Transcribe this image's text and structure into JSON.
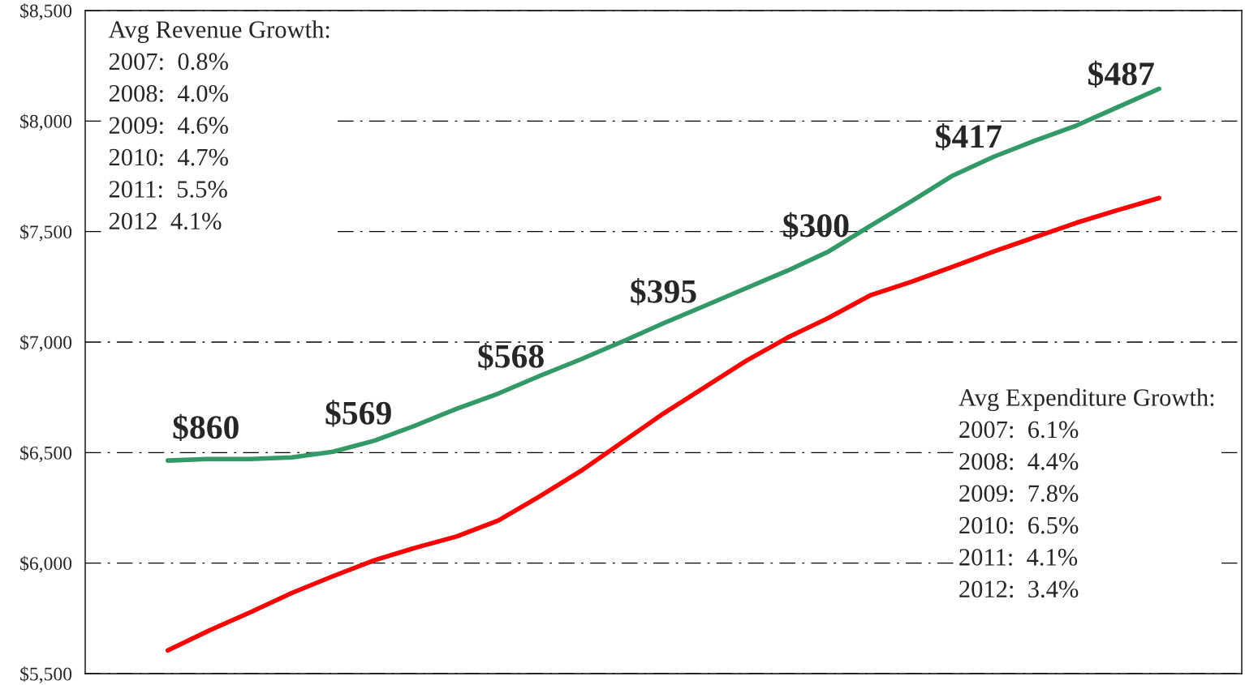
{
  "chart_data": {
    "type": "line",
    "categories": [
      null,
      null,
      null,
      null,
      null,
      null,
      null,
      null,
      null,
      null,
      null,
      null,
      null,
      null,
      null,
      null,
      null,
      null,
      null,
      null,
      null,
      null,
      null,
      null,
      null
    ],
    "series": [
      {
        "color": "#339966",
        "values": [
          6464,
          6471,
          6471,
          6478,
          6504,
          6554,
          6623,
          6699,
          6767,
          6847,
          6922,
          7002,
          7085,
          7164,
          7244,
          7323,
          7410,
          7525,
          7637,
          7753,
          7839,
          7912,
          7980,
          8063,
          8146
        ]
      },
      {
        "color": "#ff0000",
        "values": [
          5605,
          5695,
          5778,
          5865,
          5941,
          6013,
          6070,
          6121,
          6193,
          6302,
          6417,
          6547,
          6677,
          6796,
          6915,
          7020,
          7110,
          7211,
          7273,
          7341,
          7410,
          7475,
          7540,
          7597,
          7652
        ]
      }
    ],
    "ylim": [
      5500,
      8500
    ],
    "yticks": [
      {
        "value": 5500,
        "label": "$5,500"
      },
      {
        "value": 6000,
        "label": "$6,000"
      },
      {
        "value": 6500,
        "label": "$6,500"
      },
      {
        "value": 7000,
        "label": "$7,000"
      },
      {
        "value": 7500,
        "label": "$7,500"
      },
      {
        "value": 8000,
        "label": "$8,000"
      },
      {
        "value": 8500,
        "label": "$8,500"
      }
    ],
    "grid": "y",
    "tick_labels": "y",
    "marker": "none",
    "line_style": "solid",
    "legend": false,
    "annotations": [
      "Avg Revenue Growth:\n2007:  0.8%\n2008:  4.0%\n2009:  4.6%\n2010:  4.7%\n2011:  5.5%\n2012  4.1%",
      "Avg Expenditure Growth:\n2007:  6.1%\n2008:  4.4%\n2009:  7.8%\n2010:  6.5%\n2011:  4.1%\n2012:  3.4%",
      "$860",
      "$569",
      "$568",
      "$395",
      "$300",
      "$417",
      "$487"
    ]
  }
}
